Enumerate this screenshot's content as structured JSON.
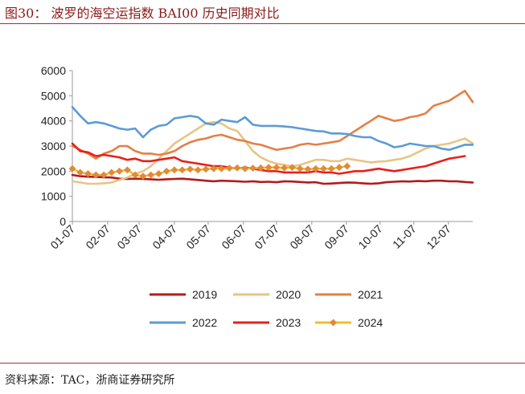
{
  "header": {
    "title": "图30：  波罗的海空运指数 BAI00 历史同期对比"
  },
  "footer": {
    "source": "资料来源：TAC，浙商证券研究所"
  },
  "chart_data": {
    "type": "line",
    "title": "波罗的海空运指数 BAI00 历史同期对比",
    "xlabel": "",
    "ylabel": "",
    "ylim": [
      0,
      6000
    ],
    "yticks": [
      0,
      1000,
      2000,
      3000,
      4000,
      5000,
      6000
    ],
    "xlim": [
      0,
      51
    ],
    "xticks": [
      {
        "label": "01-07",
        "week": 0
      },
      {
        "label": "02-07",
        "week": 4.5
      },
      {
        "label": "03-07",
        "week": 8.5
      },
      {
        "label": "04-07",
        "week": 13
      },
      {
        "label": "05-07",
        "week": 17.3
      },
      {
        "label": "06-07",
        "week": 21.8
      },
      {
        "label": "07-07",
        "week": 26
      },
      {
        "label": "08-07",
        "week": 30.5
      },
      {
        "label": "09-07",
        "week": 34.9
      },
      {
        "label": "10-07",
        "week": 39.2
      },
      {
        "label": "11-07",
        "week": 43.5
      },
      {
        "label": "12-07",
        "week": 47.9
      }
    ],
    "grid": false,
    "legend_position": "bottom",
    "series": [
      {
        "name": "2019",
        "color": "#b01c1c",
        "marker": "none",
        "values": [
          1850,
          1800,
          1780,
          1770,
          1760,
          1750,
          1700,
          1690,
          1700,
          1690,
          1680,
          1660,
          1680,
          1690,
          1700,
          1680,
          1650,
          1620,
          1600,
          1620,
          1610,
          1600,
          1580,
          1600,
          1570,
          1580,
          1560,
          1600,
          1590,
          1570,
          1550,
          1560,
          1500,
          1510,
          1530,
          1550,
          1540,
          1520,
          1500,
          1520,
          1560,
          1580,
          1600,
          1590,
          1610,
          1600,
          1620,
          1620,
          1600,
          1600,
          1570,
          1550
        ]
      },
      {
        "name": "2020",
        "color": "#e8c484",
        "marker": "none",
        "values": [
          1600,
          1550,
          1500,
          1500,
          1520,
          1550,
          1650,
          1750,
          1900,
          2000,
          2200,
          2500,
          2800,
          3100,
          3300,
          3500,
          3700,
          3900,
          3950,
          3900,
          3700,
          3600,
          3200,
          2800,
          2550,
          2400,
          2300,
          2250,
          2200,
          2250,
          2350,
          2450,
          2450,
          2400,
          2400,
          2500,
          2450,
          2400,
          2350,
          2380,
          2400,
          2450,
          2500,
          2600,
          2750,
          2900,
          3000,
          3050,
          3100,
          3200,
          3300,
          3100
        ]
      },
      {
        "name": "2021",
        "color": "#e47f45",
        "marker": "none",
        "values": [
          3000,
          2850,
          2700,
          2500,
          2700,
          2800,
          3000,
          3000,
          2800,
          2700,
          2700,
          2650,
          2700,
          2800,
          3000,
          3150,
          3250,
          3300,
          3400,
          3450,
          3350,
          3250,
          3200,
          3100,
          3050,
          2950,
          2850,
          2900,
          2950,
          3050,
          3100,
          3050,
          3100,
          3150,
          3200,
          3400,
          3600,
          3800,
          4000,
          4200,
          4100,
          4000,
          4050,
          4150,
          4200,
          4300,
          4600,
          4700,
          4800,
          5000,
          5200,
          4750
        ]
      },
      {
        "name": "2022",
        "color": "#5b9bd5",
        "marker": "none",
        "values": [
          4550,
          4200,
          3900,
          3950,
          3900,
          3800,
          3700,
          3650,
          3700,
          3350,
          3650,
          3800,
          3850,
          4100,
          4150,
          4200,
          4150,
          3900,
          3850,
          4050,
          4000,
          3950,
          4150,
          3850,
          3800,
          3800,
          3800,
          3780,
          3750,
          3700,
          3650,
          3600,
          3580,
          3500,
          3500,
          3480,
          3400,
          3350,
          3350,
          3200,
          3100,
          2950,
          3000,
          3100,
          3050,
          3000,
          3000,
          2900,
          2850,
          2950,
          3050,
          3050
        ]
      },
      {
        "name": "2023",
        "color": "#e8201a",
        "marker": "none",
        "values": [
          3100,
          2800,
          2750,
          2600,
          2650,
          2600,
          2550,
          2450,
          2500,
          2400,
          2400,
          2450,
          2500,
          2550,
          2400,
          2350,
          2300,
          2250,
          2200,
          2200,
          2150,
          2100,
          2150,
          2100,
          2050,
          2000,
          2000,
          1950,
          1950,
          1950,
          1950,
          2000,
          1950,
          1950,
          1900,
          1950,
          2000,
          2000,
          2050,
          2100,
          2050,
          2000,
          2050,
          2100,
          2150,
          2200,
          2300,
          2400,
          2500,
          2550,
          2600
        ]
      },
      {
        "name": "2024",
        "color": "#f0c020",
        "marker": "diamond",
        "marker_color": "#e08a3a",
        "values": [
          2100,
          1950,
          1900,
          1850,
          1850,
          1950,
          2000,
          2050,
          1850,
          1800,
          1850,
          1900,
          2000,
          2050,
          2050,
          2080,
          2050,
          2080,
          2100,
          2100,
          2120,
          2130,
          2100,
          2120,
          2130,
          2150,
          2150,
          2130,
          2150,
          2100,
          2080,
          2100,
          2100,
          2100,
          2150,
          2200
        ]
      }
    ]
  }
}
